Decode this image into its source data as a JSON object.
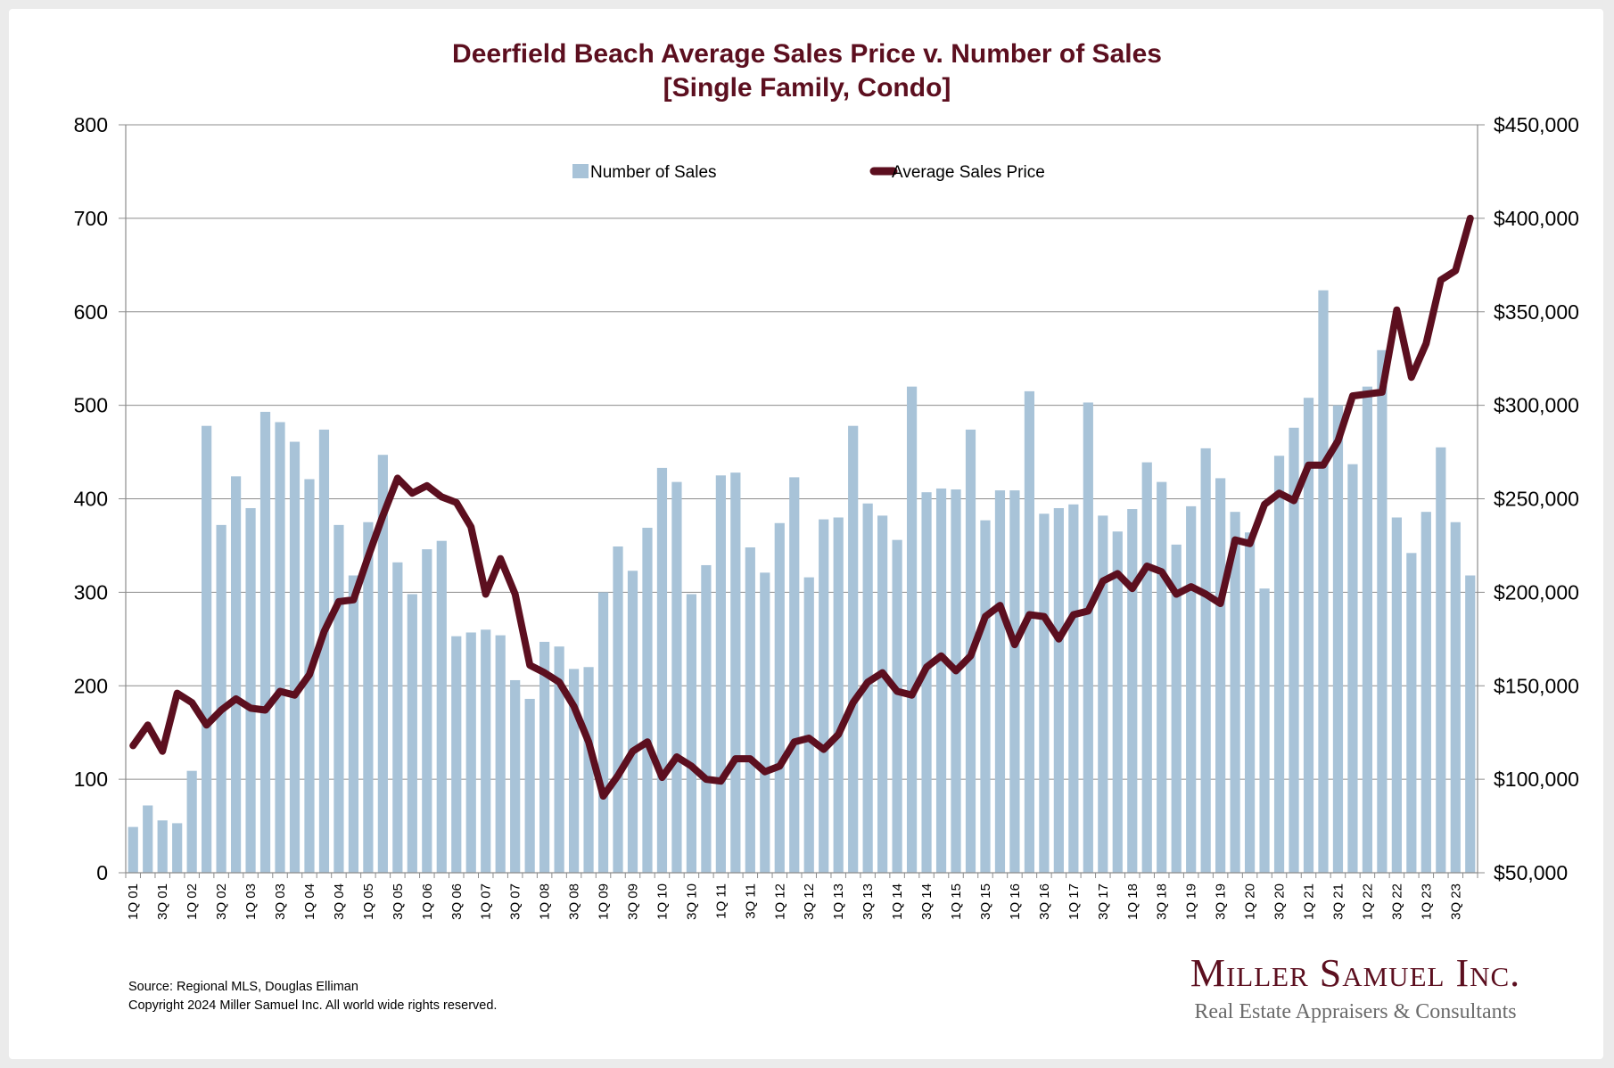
{
  "chart_data": {
    "type": "bar+line",
    "title": "Deerfield Beach Average Sales Price v. Number of Sales",
    "subtitle": "[Single Family, Condo]",
    "xlabel": "",
    "ylabel_left": "",
    "ylabel_right": "",
    "grid": true,
    "legend_position": "top-center",
    "left_axis": {
      "range": [
        0,
        800
      ],
      "ticks": [
        "0",
        "100",
        "200",
        "300",
        "400",
        "500",
        "600",
        "700",
        "800"
      ],
      "tick_values": [
        0,
        100,
        200,
        300,
        400,
        500,
        600,
        700,
        800
      ]
    },
    "right_axis": {
      "range": [
        50000,
        450000
      ],
      "ticks": [
        "$50,000",
        "$100,000",
        "$150,000",
        "$200,000",
        "$250,000",
        "$300,000",
        "$350,000",
        "$400,000",
        "$450,000"
      ],
      "tick_values": [
        50000,
        100000,
        150000,
        200000,
        250000,
        300000,
        350000,
        400000,
        450000
      ]
    },
    "categories": [
      "1Q 01",
      "2Q 01",
      "3Q 01",
      "4Q 01",
      "1Q 02",
      "2Q 02",
      "3Q 02",
      "4Q 02",
      "1Q 03",
      "2Q 03",
      "3Q 03",
      "4Q 03",
      "1Q 04",
      "2Q 04",
      "3Q 04",
      "4Q 04",
      "1Q 05",
      "2Q 05",
      "3Q 05",
      "4Q 05",
      "1Q 06",
      "2Q 06",
      "3Q 06",
      "4Q 06",
      "1Q 07",
      "2Q 07",
      "3Q 07",
      "4Q 07",
      "1Q 08",
      "2Q 08",
      "3Q 08",
      "4Q 08",
      "1Q 09",
      "2Q 09",
      "3Q 09",
      "4Q 09",
      "1Q 10",
      "2Q 10",
      "3Q 10",
      "4Q 10",
      "1Q 11",
      "2Q 11",
      "3Q 11",
      "4Q 11",
      "1Q 12",
      "2Q 12",
      "3Q 12",
      "4Q 12",
      "1Q 13",
      "2Q 13",
      "3Q 13",
      "4Q 13",
      "1Q 14",
      "2Q 14",
      "3Q 14",
      "4Q 14",
      "1Q 15",
      "2Q 15",
      "3Q 15",
      "4Q 15",
      "1Q 16",
      "2Q 16",
      "3Q 16",
      "4Q 16",
      "1Q 17",
      "2Q 17",
      "3Q 17",
      "4Q 17",
      "1Q 18",
      "2Q 18",
      "3Q 18",
      "4Q 18",
      "1Q 19",
      "2Q 19",
      "3Q 19",
      "4Q 19",
      "1Q 20",
      "2Q 20",
      "3Q 20",
      "4Q 20",
      "1Q 21",
      "2Q 21",
      "3Q 21",
      "4Q 21",
      "1Q 22",
      "2Q 22",
      "3Q 22",
      "4Q 22",
      "1Q 23",
      "2Q 23",
      "3Q 23",
      "4Q 23"
    ],
    "x_tick_labels_shown": "every other category (1Q and 3Q)",
    "series": [
      {
        "name": "Number of Sales",
        "type": "bar",
        "axis": "left",
        "color": "#a8c3d8",
        "values": [
          49,
          72,
          56,
          53,
          109,
          478,
          372,
          424,
          390,
          493,
          482,
          461,
          421,
          474,
          372,
          318,
          375,
          447,
          332,
          298,
          346,
          355,
          253,
          257,
          260,
          254,
          206,
          186,
          247,
          242,
          218,
          220,
          300,
          349,
          323,
          369,
          433,
          418,
          298,
          329,
          425,
          428,
          348,
          321,
          374,
          423,
          316,
          378,
          380,
          478,
          395,
          382,
          356,
          520,
          407,
          411,
          410,
          474,
          377,
          409,
          409,
          515,
          384,
          390,
          394,
          503,
          382,
          365,
          389,
          439,
          418,
          351,
          392,
          454,
          422,
          386,
          364,
          304,
          446,
          476,
          508,
          623,
          500,
          437,
          520,
          559,
          380,
          342,
          386,
          455,
          375,
          318
        ]
      },
      {
        "name": "Average Sales Price",
        "type": "line",
        "axis": "right",
        "color": "#5c0f1f",
        "values": [
          118000,
          129000,
          115000,
          146000,
          141000,
          129000,
          137000,
          143000,
          138000,
          137000,
          147000,
          145000,
          156000,
          179000,
          195000,
          196000,
          219000,
          241000,
          261000,
          253000,
          257000,
          251000,
          248000,
          235000,
          199000,
          218000,
          199000,
          161000,
          157000,
          152000,
          139000,
          120000,
          91000,
          102000,
          115000,
          120000,
          101000,
          112000,
          107000,
          100000,
          99000,
          111000,
          111000,
          104000,
          107000,
          120000,
          122000,
          116000,
          124000,
          141000,
          152000,
          157000,
          147000,
          145000,
          160000,
          166000,
          158000,
          166000,
          187000,
          193000,
          172000,
          188000,
          187000,
          175000,
          188000,
          190000,
          206000,
          210000,
          202000,
          214000,
          211000,
          199000,
          203000,
          199000,
          194000,
          228000,
          226000,
          247000,
          253000,
          249000,
          268000,
          268000,
          281000,
          305000,
          306000,
          307000,
          351000,
          315000,
          333000,
          367000,
          372000,
          400000
        ]
      }
    ]
  },
  "legend": {
    "bar_label": "Number of Sales",
    "line_label": "Average Sales Price"
  },
  "footer": {
    "source": "Source: Regional MLS, Douglas Elliman",
    "copyright": "Copyright 2024 Miller Samuel Inc.  All world wide rights reserved."
  },
  "logo": {
    "name": "Miller Samuel Inc.",
    "tagline": "Real Estate Appraisers & Consultants"
  },
  "colors": {
    "title": "#5c0f1f",
    "bar": "#a8c3d8",
    "line": "#5c0f1f",
    "grid": "#8c8c8c",
    "frame": "#ebebeb"
  }
}
